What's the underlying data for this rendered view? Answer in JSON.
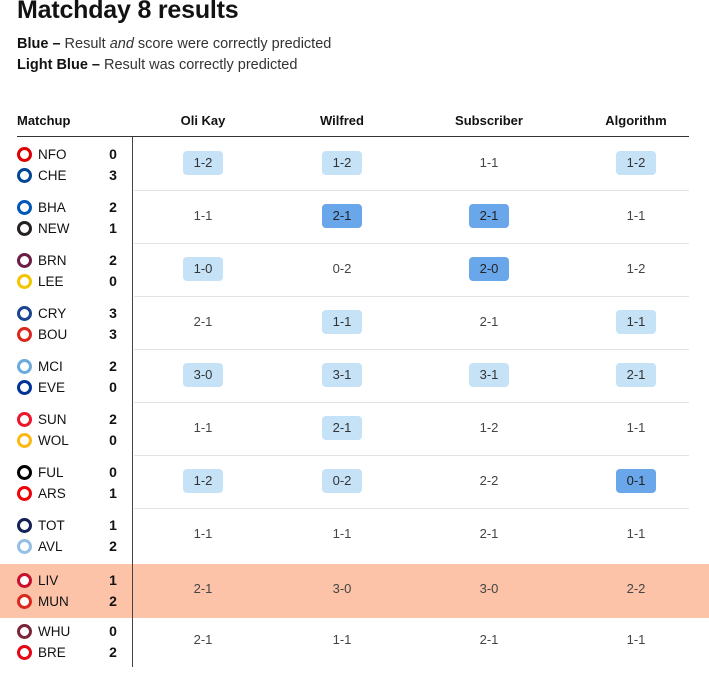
{
  "title": "Matchday 8 results",
  "legend": {
    "blue_key": "Blue –",
    "blue_pre": "Result ",
    "blue_em": "and",
    "blue_post": " score were correctly predicted",
    "light_key": "Light Blue –",
    "light_text": "Result was correctly predicted"
  },
  "colors": {
    "light_blue": "#c6e2f7",
    "blue": "#6aa6ea",
    "highlight_row": "#fcc3a9"
  },
  "headers": {
    "matchup": "Matchup",
    "predictors": [
      "Oli Kay",
      "Wilfred",
      "Subscriber",
      "Algorithm"
    ]
  },
  "matches": [
    {
      "home": "NFO",
      "away": "CHE",
      "home_score": "0",
      "away_score": "3",
      "home_icon": "nottingham-forest-crest-icon",
      "away_icon": "chelsea-crest-icon",
      "home_color": "#dd0000",
      "away_color": "#034694",
      "predictions": [
        {
          "score": "1-2",
          "status": "light"
        },
        {
          "score": "1-2",
          "status": "light"
        },
        {
          "score": "1-1",
          "status": "none"
        },
        {
          "score": "1-2",
          "status": "light"
        }
      ]
    },
    {
      "home": "BHA",
      "away": "NEW",
      "home_score": "2",
      "away_score": "1",
      "home_icon": "brighton-crest-icon",
      "away_icon": "newcastle-crest-icon",
      "home_color": "#0057b8",
      "away_color": "#241f20",
      "predictions": [
        {
          "score": "1-1",
          "status": "none"
        },
        {
          "score": "2-1",
          "status": "dark"
        },
        {
          "score": "2-1",
          "status": "dark"
        },
        {
          "score": "1-1",
          "status": "none"
        }
      ]
    },
    {
      "home": "BRN",
      "away": "LEE",
      "home_score": "2",
      "away_score": "0",
      "home_icon": "burnley-crest-icon",
      "away_icon": "leeds-crest-icon",
      "home_color": "#6c1d45",
      "away_color": "#f2c500",
      "predictions": [
        {
          "score": "1-0",
          "status": "light"
        },
        {
          "score": "0-2",
          "status": "none"
        },
        {
          "score": "2-0",
          "status": "dark"
        },
        {
          "score": "1-2",
          "status": "none"
        }
      ]
    },
    {
      "home": "CRY",
      "away": "BOU",
      "home_score": "3",
      "away_score": "3",
      "home_icon": "crystal-palace-crest-icon",
      "away_icon": "bournemouth-crest-icon",
      "home_color": "#1b458f",
      "away_color": "#da291c",
      "predictions": [
        {
          "score": "2-1",
          "status": "none"
        },
        {
          "score": "1-1",
          "status": "light"
        },
        {
          "score": "2-1",
          "status": "none"
        },
        {
          "score": "1-1",
          "status": "light"
        }
      ]
    },
    {
      "home": "MCI",
      "away": "EVE",
      "home_score": "2",
      "away_score": "0",
      "home_icon": "manchester-city-crest-icon",
      "away_icon": "everton-crest-icon",
      "home_color": "#6cabdd",
      "away_color": "#003399",
      "predictions": [
        {
          "score": "3-0",
          "status": "light"
        },
        {
          "score": "3-1",
          "status": "light"
        },
        {
          "score": "3-1",
          "status": "light"
        },
        {
          "score": "2-1",
          "status": "light"
        }
      ]
    },
    {
      "home": "SUN",
      "away": "WOL",
      "home_score": "2",
      "away_score": "0",
      "home_icon": "sunderland-crest-icon",
      "away_icon": "wolves-crest-icon",
      "home_color": "#eb172b",
      "away_color": "#fdb913",
      "predictions": [
        {
          "score": "1-1",
          "status": "none"
        },
        {
          "score": "2-1",
          "status": "light"
        },
        {
          "score": "1-2",
          "status": "none"
        },
        {
          "score": "1-1",
          "status": "none"
        }
      ]
    },
    {
      "home": "FUL",
      "away": "ARS",
      "home_score": "0",
      "away_score": "1",
      "home_icon": "fulham-crest-icon",
      "away_icon": "arsenal-crest-icon",
      "home_color": "#000000",
      "away_color": "#ef0107",
      "predictions": [
        {
          "score": "1-2",
          "status": "light"
        },
        {
          "score": "0-2",
          "status": "light"
        },
        {
          "score": "2-2",
          "status": "none"
        },
        {
          "score": "0-1",
          "status": "dark"
        }
      ]
    },
    {
      "home": "TOT",
      "away": "AVL",
      "home_score": "1",
      "away_score": "2",
      "home_icon": "tottenham-crest-icon",
      "away_icon": "aston-villa-crest-icon",
      "home_color": "#132257",
      "away_color": "#95bfe5",
      "predictions": [
        {
          "score": "1-1",
          "status": "none"
        },
        {
          "score": "1-1",
          "status": "none"
        },
        {
          "score": "2-1",
          "status": "none"
        },
        {
          "score": "1-1",
          "status": "none"
        }
      ]
    },
    {
      "home": "LIV",
      "away": "MUN",
      "home_score": "1",
      "away_score": "2",
      "home_icon": "liverpool-crest-icon",
      "away_icon": "manchester-united-crest-icon",
      "home_color": "#c8102e",
      "away_color": "#da291c",
      "highlight": true,
      "predictions": [
        {
          "score": "2-1",
          "status": "none"
        },
        {
          "score": "3-0",
          "status": "none"
        },
        {
          "score": "3-0",
          "status": "none"
        },
        {
          "score": "2-2",
          "status": "none"
        }
      ]
    },
    {
      "home": "WHU",
      "away": "BRE",
      "home_score": "0",
      "away_score": "2",
      "home_icon": "west-ham-crest-icon",
      "away_icon": "brentford-crest-icon",
      "home_color": "#7a263a",
      "away_color": "#e30613",
      "predictions": [
        {
          "score": "2-1",
          "status": "none"
        },
        {
          "score": "1-1",
          "status": "none"
        },
        {
          "score": "2-1",
          "status": "none"
        },
        {
          "score": "1-1",
          "status": "none"
        }
      ]
    }
  ]
}
